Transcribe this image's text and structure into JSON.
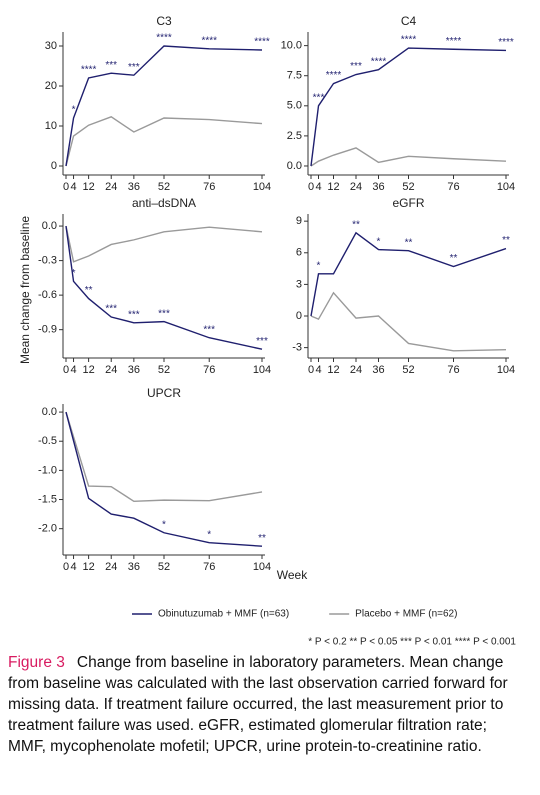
{
  "y_label": "Mean change from baseline",
  "x_label": "Week",
  "footnote": "* P < 0.2  ** P < 0.05  *** P < 0.01  **** P < 0.001",
  "caption_label": "Figure 3",
  "caption": "Change from baseline in laboratory parameters. Mean change from baseline was calculated with the last observation carried forward for missing data. If treatment failure occurred, the last measurement prior to treatment failure was used. eGFR, estimated glomerular filtration rate; MMF, mycophenolate mofetil; UPCR, urine protein-to-creatinine ratio.",
  "chart_data": [
    {
      "type": "line",
      "title": "C3",
      "x": [
        0,
        4,
        12,
        24,
        36,
        52,
        76,
        104
      ],
      "xlim": [
        0,
        104
      ],
      "xticks": [
        0,
        4,
        12,
        24,
        36,
        52,
        76,
        104
      ],
      "ylim": [
        -1.5,
        32.5
      ],
      "yticks": [
        0,
        10,
        20,
        30
      ],
      "series": [
        {
          "name": "Obinutuzumab + MMF (n=63)",
          "color": "#1f1f6e",
          "values": [
            0,
            12,
            22,
            23.2,
            22.7,
            30,
            29.3,
            29
          ],
          "significance": [
            null,
            "*",
            "****",
            "***",
            "***",
            "****",
            "****",
            "****"
          ]
        },
        {
          "name": "Placebo + MMF (n=62)",
          "color": "#9a9a9a",
          "values": [
            0,
            7.5,
            10.2,
            12.3,
            8.5,
            12,
            11.6,
            10.6
          ]
        }
      ]
    },
    {
      "type": "line",
      "title": "C4",
      "x": [
        0,
        4,
        12,
        24,
        36,
        52,
        76,
        104
      ],
      "xlim": [
        0,
        104
      ],
      "xticks": [
        0,
        4,
        12,
        24,
        36,
        52,
        76,
        104
      ],
      "ylim": [
        -0.5,
        10.8
      ],
      "yticks": [
        {
          "value": 0,
          "label": "0.0"
        },
        2.5,
        {
          "value": 5,
          "label": "5.0"
        },
        7.5,
        {
          "value": 10,
          "label": "10.0"
        }
      ],
      "series": [
        {
          "name": "Obinutuzumab + MMF (n=63)",
          "color": "#1f1f6e",
          "values": [
            0,
            5,
            6.85,
            7.6,
            8,
            9.8,
            9.7,
            9.6
          ],
          "significance": [
            null,
            "***",
            "****",
            "***",
            "****",
            "****",
            "****",
            "****"
          ]
        },
        {
          "name": "Placebo + MMF (n=62)",
          "color": "#9a9a9a",
          "values": [
            0,
            0.4,
            0.9,
            1.5,
            0.3,
            0.8,
            0.6,
            0.4
          ]
        }
      ]
    },
    {
      "type": "line",
      "title": "anti–dsDNA",
      "x": [
        0,
        4,
        12,
        24,
        36,
        52,
        76,
        104
      ],
      "xlim": [
        0,
        104
      ],
      "xticks": [
        0,
        4,
        12,
        24,
        36,
        52,
        76,
        104
      ],
      "ylim": [
        -1.12,
        0.07
      ],
      "yticks": [
        {
          "value": 0,
          "label": "0.0"
        },
        -0.3,
        -0.6,
        -0.9
      ],
      "series": [
        {
          "name": "Obinutuzumab + MMF (n=63)",
          "color": "#1f1f6e",
          "values": [
            0,
            -0.48,
            -0.63,
            -0.79,
            -0.84,
            -0.83,
            -0.97,
            -1.07
          ],
          "significance": [
            null,
            "*",
            "**",
            "***",
            "***",
            "***",
            "***",
            "***"
          ]
        },
        {
          "name": "Placebo + MMF (n=62)",
          "color": "#9a9a9a",
          "values": [
            0,
            -0.31,
            -0.26,
            -0.16,
            -0.12,
            -0.05,
            -0.01,
            -0.05
          ]
        }
      ]
    },
    {
      "type": "line",
      "title": "eGFR",
      "x": [
        0,
        4,
        12,
        24,
        36,
        52,
        76,
        104
      ],
      "xlim": [
        0,
        104
      ],
      "xticks": [
        0,
        4,
        12,
        24,
        36,
        52,
        76,
        104
      ],
      "ylim": [
        -3.7,
        9.3
      ],
      "yticks": [
        -3,
        0,
        3,
        6,
        9
      ],
      "series": [
        {
          "name": "Obinutuzumab + MMF (n=63)",
          "color": "#1f1f6e",
          "values": [
            0,
            4,
            4,
            7.9,
            6.3,
            6.2,
            4.7,
            6.4
          ],
          "significance": [
            null,
            "*",
            null,
            "**",
            "*",
            "**",
            "**",
            "**"
          ]
        },
        {
          "name": "Placebo + MMF (n=62)",
          "color": "#9a9a9a",
          "values": [
            0,
            -0.3,
            2.2,
            -0.2,
            0,
            -2.6,
            -3.3,
            -3.2
          ]
        }
      ]
    },
    {
      "type": "line",
      "title": "UPCR",
      "x": [
        0,
        12,
        24,
        36,
        52,
        76,
        104
      ],
      "xlim": [
        0,
        104
      ],
      "xticks": [
        0,
        4,
        12,
        24,
        36,
        52,
        76,
        104
      ],
      "ylim": [
        -2.4,
        0.07
      ],
      "yticks": [
        {
          "value": 0,
          "label": "0.0"
        },
        -0.5,
        {
          "value": -1,
          "label": "-1.0"
        },
        -1.5,
        {
          "value": -2,
          "label": "-2.0"
        }
      ],
      "series": [
        {
          "name": "Obinutuzumab + MMF (n=63)",
          "color": "#1f1f6e",
          "values": [
            0,
            -1.48,
            -1.75,
            -1.82,
            -2.07,
            -2.24,
            -2.3
          ],
          "significance": [
            null,
            null,
            null,
            null,
            "*",
            "*",
            "**"
          ]
        },
        {
          "name": "Placebo + MMF (n=62)",
          "color": "#9a9a9a",
          "values": [
            0,
            -1.27,
            -1.28,
            -1.53,
            -1.51,
            -1.52,
            -1.37
          ]
        }
      ]
    }
  ]
}
